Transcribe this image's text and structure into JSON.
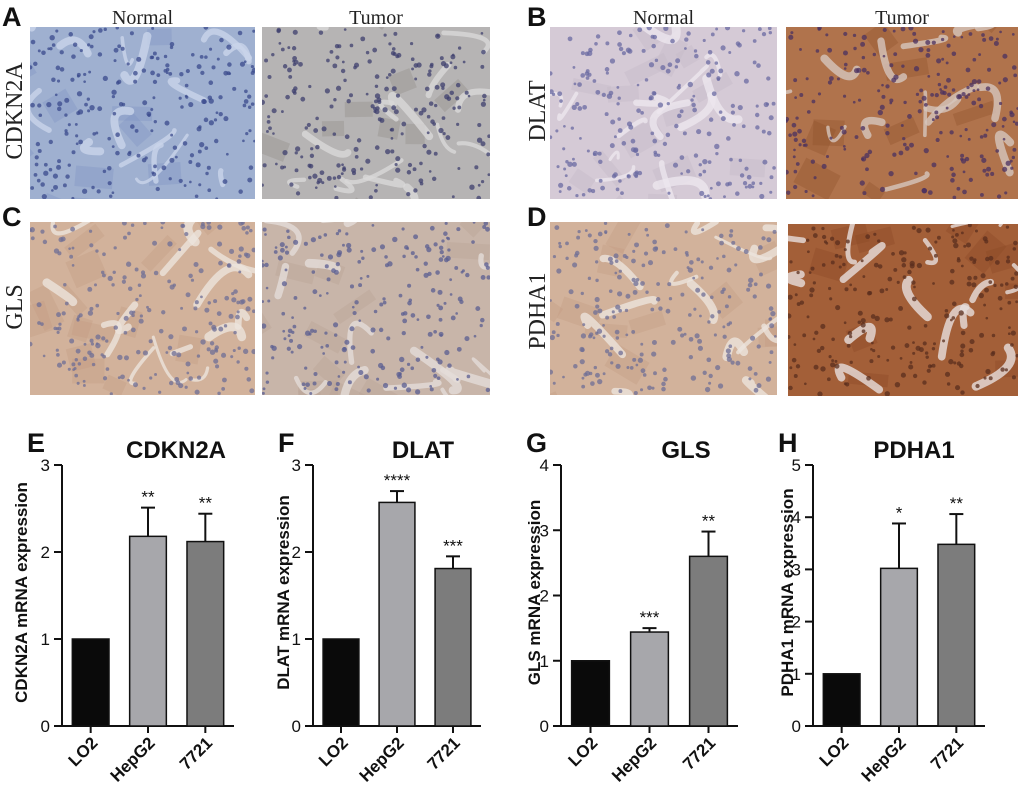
{
  "colors": {
    "bar_lo2": "#0a0a0a",
    "bar_hepg2": "#a7a7ab",
    "bar_7721": "#7c7c7c",
    "ihc_blue_bg": "#9aa8c8",
    "ihc_light_bg": "#c9bfd0",
    "ihc_brown_light": "#cfae96",
    "ihc_brown_dark": "#a86a46"
  },
  "ihc": {
    "panels": [
      {
        "letter": "A",
        "row_label": "CDKN2A",
        "col_left": "Normal",
        "col_right": "Tumor",
        "left_stain": "blue",
        "right_stain": "blue-grey"
      },
      {
        "letter": "B",
        "row_label": "DLAT",
        "col_left": "Normal",
        "col_right": "Tumor",
        "left_stain": "pale",
        "right_stain": "brown"
      },
      {
        "letter": "C",
        "row_label": "GLS",
        "col_left": "",
        "col_right": "",
        "left_stain": "light-brown",
        "right_stain": "light-brown-grey"
      },
      {
        "letter": "D",
        "row_label": "PDHA1",
        "col_left": "",
        "col_right": "",
        "left_stain": "light-brown",
        "right_stain": "dark-brown"
      }
    ]
  },
  "chart_data": [
    {
      "letter": "E",
      "type": "bar",
      "title": "CDKN2A",
      "ylabel": "CDKN2A mRNA expression",
      "xlabel": "",
      "categories": [
        "LO2",
        "HepG2",
        "7721"
      ],
      "values": [
        1.0,
        2.18,
        2.12
      ],
      "errors": [
        0,
        0.33,
        0.32
      ],
      "significance": [
        "",
        "**",
        "**"
      ],
      "ylim": [
        0,
        3
      ],
      "yticks": [
        0,
        1,
        2,
        3
      ],
      "grid": false
    },
    {
      "letter": "F",
      "type": "bar",
      "title": "DLAT",
      "ylabel": "DLAT mRNA expression",
      "xlabel": "",
      "categories": [
        "LO2",
        "HepG2",
        "7721"
      ],
      "values": [
        1.0,
        2.57,
        1.81
      ],
      "errors": [
        0,
        0.13,
        0.14
      ],
      "significance": [
        "",
        "****",
        "***"
      ],
      "ylim": [
        0,
        3
      ],
      "yticks": [
        0,
        1,
        2,
        3
      ],
      "grid": false
    },
    {
      "letter": "G",
      "type": "bar",
      "title": "GLS",
      "ylabel": "GLS mRNA expression",
      "xlabel": "",
      "categories": [
        "LO2",
        "HepG2",
        "7721"
      ],
      "values": [
        1.0,
        1.44,
        2.6
      ],
      "errors": [
        0,
        0.06,
        0.38
      ],
      "significance": [
        "",
        "***",
        "**"
      ],
      "ylim": [
        0,
        4
      ],
      "yticks": [
        0,
        1,
        2,
        3,
        4
      ],
      "grid": false
    },
    {
      "letter": "H",
      "type": "bar",
      "title": "PDHA1",
      "ylabel": "PDHA1 mRNA expression",
      "xlabel": "",
      "categories": [
        "LO2",
        "HepG2",
        "7721"
      ],
      "values": [
        1.0,
        3.02,
        3.48
      ],
      "errors": [
        0,
        0.86,
        0.58
      ],
      "significance": [
        "",
        "*",
        "**"
      ],
      "ylim": [
        0,
        5
      ],
      "yticks": [
        0,
        1,
        2,
        3,
        4,
        5
      ],
      "grid": false
    }
  ]
}
